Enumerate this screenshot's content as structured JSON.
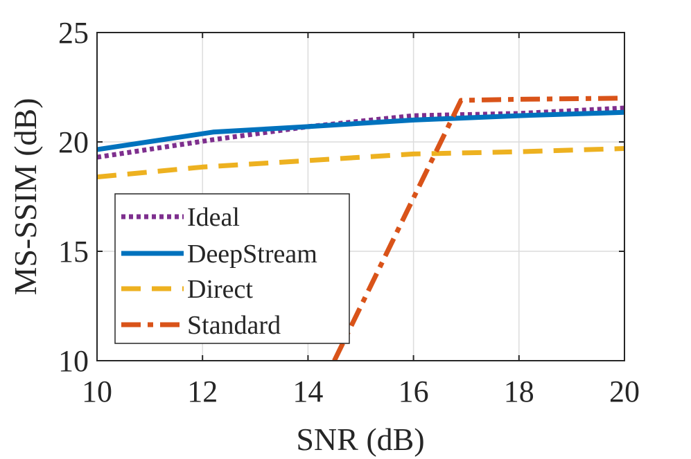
{
  "chart_data": {
    "type": "line",
    "title": "",
    "xlabel": "SNR (dB)",
    "ylabel": "MS-SSIM (dB)",
    "xlim": [
      10,
      20
    ],
    "ylim": [
      10,
      25
    ],
    "xticks": [
      10,
      12,
      14,
      16,
      18,
      20
    ],
    "yticks": [
      10,
      15,
      20,
      25
    ],
    "xtick_labels": [
      "10",
      "12",
      "14",
      "16",
      "18",
      "20"
    ],
    "ytick_labels": [
      "10",
      "15",
      "20",
      "25"
    ],
    "grid": true,
    "legend_position": "bottom-left",
    "series": [
      {
        "name": "Ideal",
        "style": "dotted",
        "color": "#7E2F8E",
        "x": [
          10,
          12.2,
          14,
          16,
          18,
          20
        ],
        "y": [
          19.3,
          20.1,
          20.7,
          21.2,
          21.3,
          21.55
        ]
      },
      {
        "name": "DeepStream",
        "style": "solid",
        "color": "#0072BD",
        "x": [
          10,
          12.2,
          14,
          16,
          18,
          20
        ],
        "y": [
          19.65,
          20.45,
          20.7,
          21.0,
          21.2,
          21.35
        ]
      },
      {
        "name": "Direct",
        "style": "dashed",
        "color": "#EDB120",
        "x": [
          10,
          12,
          14,
          16,
          18,
          20
        ],
        "y": [
          18.4,
          18.85,
          19.15,
          19.45,
          19.55,
          19.7
        ]
      },
      {
        "name": "Standard",
        "style": "dashdot",
        "color": "#D95319",
        "x": [
          14.5,
          16.9,
          18,
          20
        ],
        "y": [
          10.0,
          21.9,
          21.95,
          22.0
        ]
      }
    ]
  }
}
